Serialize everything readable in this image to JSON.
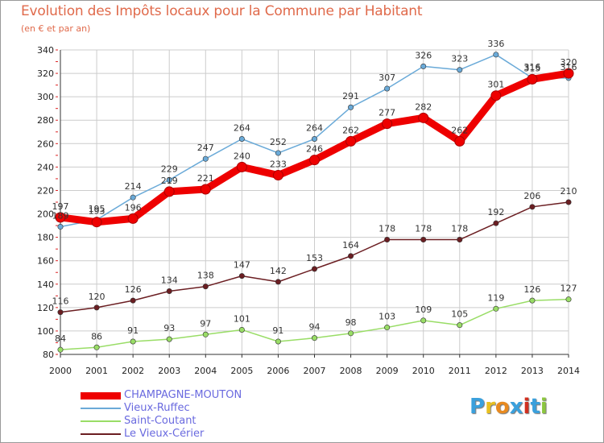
{
  "title": "Evolution des Impôts locaux pour la Commune par Habitant",
  "subtitle": "(en € et par an)",
  "logo": {
    "letters": [
      "P",
      "r",
      "o",
      "x",
      "i",
      "t",
      "i"
    ],
    "colors": [
      "#3aa0dc",
      "#e8c020",
      "#e88a20",
      "#3aa0dc",
      "#d03020",
      "#3aa0dc",
      "#8cc63f"
    ]
  },
  "chart_data": {
    "type": "line",
    "title": "Evolution des Impôts locaux pour la Commune par Habitant",
    "subtitle": "(en € et par an)",
    "xlabel": "",
    "ylabel": "",
    "x": [
      "2000",
      "2001",
      "2002",
      "2003",
      "2004",
      "2005",
      "2006",
      "2007",
      "2008",
      "2009",
      "2010",
      "2011",
      "2012",
      "2013",
      "2014"
    ],
    "yticks": [
      80,
      100,
      120,
      140,
      160,
      180,
      200,
      220,
      240,
      260,
      280,
      300,
      320,
      340
    ],
    "ylim": [
      80,
      340
    ],
    "grid": true,
    "legend_position": "bottom-left",
    "series": [
      {
        "name": "CHAMPAGNE-MOUTON",
        "color": "#ee0000",
        "values": [
          197,
          193,
          196,
          219,
          221,
          240,
          233,
          246,
          262,
          277,
          282,
          262,
          301,
          315,
          320
        ]
      },
      {
        "name": "Vieux-Ruffec",
        "color": "#6aaad8",
        "values": [
          189,
          195,
          214,
          229,
          247,
          264,
          252,
          264,
          291,
          307,
          326,
          323,
          336,
          316,
          316
        ]
      },
      {
        "name": "Saint-Coutant",
        "color": "#99dd66",
        "values": [
          84,
          86,
          91,
          93,
          97,
          101,
          91,
          94,
          98,
          103,
          109,
          105,
          119,
          126,
          127
        ]
      },
      {
        "name": "Le Vieux-Cérier",
        "color": "#6b1e22",
        "values": [
          116,
          120,
          126,
          134,
          138,
          147,
          142,
          153,
          164,
          178,
          178,
          178,
          192,
          206,
          210
        ]
      }
    ]
  }
}
